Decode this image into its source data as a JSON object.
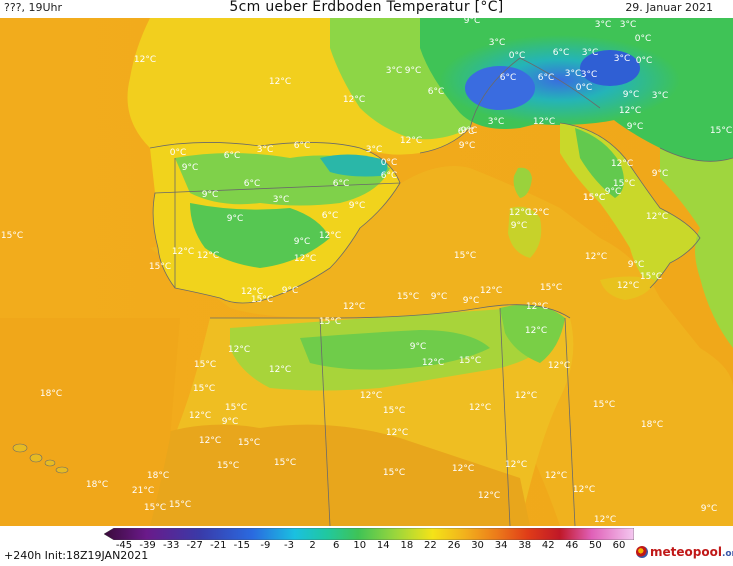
{
  "header": {
    "left": "???, 19Uhr",
    "title": "5cm ueber Erdboden Temperatur [°C]",
    "date": "29. Januar 2021"
  },
  "footer": {
    "init": "+240h  Init:18Z19JAN2021",
    "logo_text": "meteopool",
    "logo_suffix": ".org"
  },
  "legend": {
    "ticks": [
      "-45",
      "-39",
      "-33",
      "-27",
      "-21",
      "-15",
      "-9",
      "-3",
      "2",
      "6",
      "10",
      "14",
      "18",
      "22",
      "26",
      "30",
      "34",
      "38",
      "42",
      "46",
      "50",
      "60"
    ]
  },
  "colors": {
    "sea": "#f2ac1c",
    "sea_east": "#efa418",
    "land_warm": "#f0c020",
    "land_yellow": "#f4e318",
    "alps_green": "#3fc356",
    "alps_cyan": "#24b4b8",
    "alps_blue": "#3a6ce0",
    "border": "#6a6a6a",
    "label": "#ffffff"
  },
  "temperature_labels": [
    "3°C",
    "3°C",
    "0°C",
    "9°C",
    "3°C",
    "0°C",
    "6°C",
    "3°C",
    "9°C",
    "3°C",
    "3°C",
    "6°C",
    "6°C",
    "3°C",
    "0°C",
    "3°C",
    "0°C",
    "9°C",
    "3°C",
    "12°C",
    "12°C",
    "12°C",
    "12°C",
    "9°C",
    "6°C",
    "9°C",
    "3°C",
    "12°C",
    "6°C",
    "9°C",
    "0°C",
    "12°C",
    "3°C",
    "6°C",
    "6°C",
    "0°C",
    "3°C",
    "6°C",
    "9°C",
    "15°C",
    "12°C",
    "15°C",
    "9°C",
    "15°C",
    "9°C",
    "6°C",
    "6°C",
    "9°C",
    "3°C",
    "12°C",
    "9°C",
    "9°C",
    "6°C",
    "9°C",
    "12°C",
    "12°C",
    "15°C",
    "12°C",
    "9°C",
    "15°C",
    "12°C",
    "15°C",
    "12°C",
    "12°C",
    "9°C",
    "15°C",
    "12°C",
    "15°C",
    "12°C",
    "9°C",
    "12°C",
    "15°C",
    "12°C",
    "12°C",
    "15°C",
    "9°C",
    "15°C",
    "12°C",
    "9°C",
    "12°C",
    "15°C",
    "15°C",
    "12°C",
    "9°C",
    "12°C",
    "15°C",
    "12°C",
    "12°C",
    "18°C",
    "12°C",
    "12°C",
    "15°C",
    "12°C",
    "15°C",
    "12°C",
    "15°C",
    "9°C",
    "12°C",
    "15°C",
    "18°C",
    "18°C",
    "21°C",
    "18°C",
    "15°C",
    "12°C",
    "15°C",
    "12°C",
    "15°C",
    "12°C",
    "15°C",
    "12°C",
    "15°C",
    "12°C",
    "15°C",
    "12°C",
    "9°C",
    "12°C"
  ]
}
